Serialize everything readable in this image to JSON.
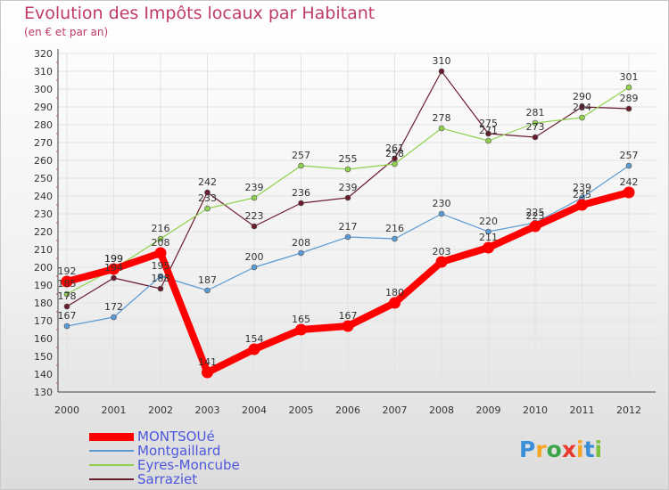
{
  "header": {
    "title": "Evolution des Impôts locaux par Habitant",
    "subtitle": "(en € et par an)"
  },
  "logo": {
    "letters": [
      "P",
      "r",
      "o",
      "x",
      "i",
      "t",
      "i"
    ],
    "colors": [
      "#3a8fd8",
      "#f5a623",
      "#3aa54a",
      "#e8392c",
      "#f5a623",
      "#3a8fd8",
      "#7bbf3a"
    ]
  },
  "chart_data": {
    "type": "line",
    "title": "Evolution des Impôts locaux par Habitant",
    "subtitle": "(en € et par an)",
    "xlabel": "",
    "ylabel": "",
    "ylim": [
      130,
      320
    ],
    "y_ticks": [
      130,
      140,
      150,
      160,
      170,
      180,
      190,
      200,
      210,
      220,
      230,
      240,
      250,
      260,
      270,
      280,
      290,
      300,
      310,
      320
    ],
    "grid": true,
    "legend_position": "bottom-left",
    "categories": [
      "2000",
      "2001",
      "2002",
      "2003",
      "2004",
      "2005",
      "2006",
      "2007",
      "2008",
      "2009",
      "2010",
      "2011",
      "2012"
    ],
    "series": [
      {
        "name": "MONTSOUé",
        "color": "#ff0000",
        "values": [
          192,
          199,
          208,
          141,
          154,
          165,
          167,
          180,
          203,
          211,
          223,
          235,
          242
        ]
      },
      {
        "name": "Montgaillard",
        "color": "#5b9bd5",
        "values": [
          167,
          172,
          195,
          187,
          200,
          208,
          217,
          216,
          230,
          220,
          225,
          239,
          257
        ]
      },
      {
        "name": "Eyres-Moncube",
        "color": "#8fd14f",
        "values": [
          185,
          199,
          216,
          233,
          239,
          257,
          255,
          258,
          278,
          271,
          281,
          284,
          301
        ]
      },
      {
        "name": "Sarraziet",
        "color": "#6b1c2c",
        "values": [
          178,
          194,
          188,
          242,
          223,
          236,
          239,
          261,
          310,
          275,
          273,
          290,
          289
        ]
      }
    ]
  }
}
